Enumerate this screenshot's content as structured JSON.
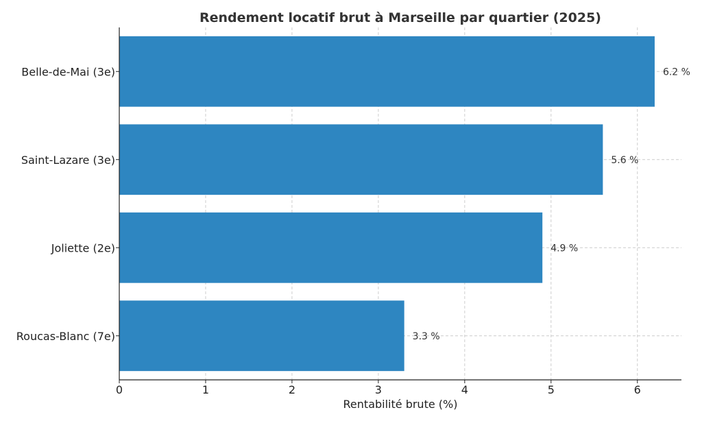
{
  "chart_data": {
    "type": "bar",
    "orientation": "horizontal",
    "title": "Rendement locatif brut à Marseille par quartier (2025)",
    "xlabel": "Rentabilité brute (%)",
    "ylabel": "",
    "categories": [
      "Belle-de-Mai (3e)",
      "Saint-Lazare (3e)",
      "Joliette (2e)",
      "Roucas-Blanc (7e)"
    ],
    "values": [
      6.2,
      5.6,
      4.9,
      3.3
    ],
    "data_labels": [
      "6.2 %",
      "5.6 %",
      "4.9 %",
      "3.3 %"
    ],
    "xlim": [
      0,
      6.51
    ],
    "xticks": [
      "0",
      "1",
      "2",
      "3",
      "4",
      "5",
      "6"
    ],
    "grid": true,
    "bar_color": "#2e86c1"
  }
}
